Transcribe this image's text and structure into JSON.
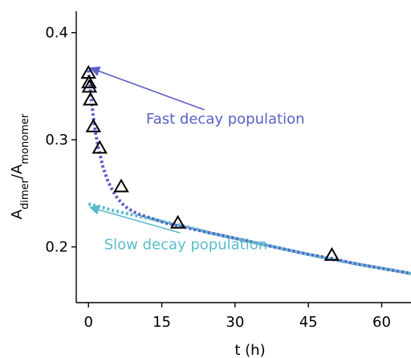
{
  "chart_data": {
    "type": "scatter",
    "title": "",
    "xlabel": "t (h)",
    "ylabel": {
      "base1": "A",
      "sub1": "dimer",
      "sep": "/",
      "base2": "A",
      "sub2": "monomer"
    },
    "xlim": [
      -2.5,
      66
    ],
    "ylim": [
      0.148,
      0.42
    ],
    "xticks": [
      0,
      15,
      30,
      45,
      60
    ],
    "xtick_labels": [
      "0",
      "15",
      "30",
      "45",
      "60"
    ],
    "yticks": [
      0.2,
      0.3,
      0.4
    ],
    "ytick_labels": [
      "0.2",
      "0.3",
      "0.4"
    ],
    "grid": false,
    "legend": "none",
    "markers": {
      "shape": "open triangle",
      "color": "#000000",
      "points": [
        {
          "x": 0.0,
          "y": 0.362
        },
        {
          "x": 0.1,
          "y": 0.353
        },
        {
          "x": 0.2,
          "y": 0.349
        },
        {
          "x": 0.4,
          "y": 0.337
        },
        {
          "x": 1.0,
          "y": 0.312
        },
        {
          "x": 2.3,
          "y": 0.292
        },
        {
          "x": 6.7,
          "y": 0.256
        },
        {
          "x": 18.3,
          "y": 0.222
        },
        {
          "x": 49.8,
          "y": 0.192
        }
      ]
    },
    "series": [
      {
        "color": "#5b5fc7",
        "style": "dotted",
        "x": [
          0.0,
          0.5,
          1.0,
          1.5,
          2.0,
          3.0,
          4.0,
          5.0,
          6.0,
          7.0,
          8.0,
          10.0,
          12.0,
          14.0,
          16.0,
          18.0,
          20.0,
          25.0,
          30.0,
          35.0,
          40.0,
          45.0,
          50.0,
          55.0,
          60.0,
          65.0,
          66.0
        ],
        "y": [
          0.365,
          0.34,
          0.321,
          0.305,
          0.293,
          0.274,
          0.261,
          0.252,
          0.245,
          0.24,
          0.236,
          0.231,
          0.228,
          0.225,
          0.222,
          0.22,
          0.218,
          0.213,
          0.208,
          0.203,
          0.198,
          0.193,
          0.189,
          0.184,
          0.18,
          0.176,
          0.175
        ]
      },
      {
        "color": "#5bbccc",
        "style": "dotted",
        "x": [
          0.0,
          2.0,
          5.0,
          10.0,
          15.0,
          20.0,
          25.0,
          30.0,
          35.0,
          40.0,
          45.0,
          50.0,
          55.0,
          60.0,
          65.0,
          66.0
        ],
        "y": [
          0.24,
          0.238,
          0.234,
          0.229,
          0.224,
          0.219,
          0.213,
          0.208,
          0.203,
          0.198,
          0.193,
          0.188,
          0.184,
          0.18,
          0.176,
          0.175
        ]
      }
    ],
    "annotations": [
      {
        "text": "Fast decay population",
        "color": "#5b5fc7",
        "arrow_to": {
          "x": 0.4,
          "y": 0.367
        },
        "arrow_from": {
          "x": 23.7,
          "y": 0.328
        },
        "text_pos": {
          "x": 11.8,
          "y": 0.315
        }
      },
      {
        "text": "Slow decay population",
        "color": "#5bbccc",
        "arrow_to": {
          "x": 0.3,
          "y": 0.237
        },
        "arrow_from": {
          "x": 18.8,
          "y": 0.213
        },
        "text_pos": {
          "x": 3.2,
          "y": 0.198
        }
      }
    ]
  }
}
